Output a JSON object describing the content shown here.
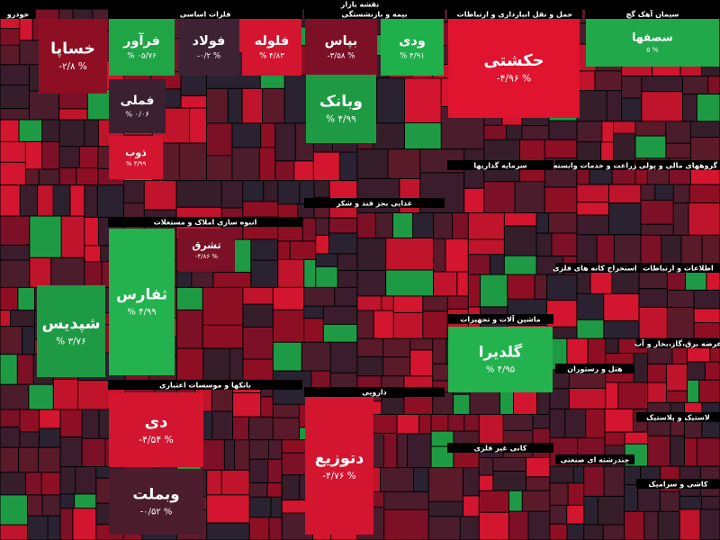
{
  "title": "نقشه بازار",
  "sectors": [
    "خودرو",
    "فلزات اساسی",
    "بیمه و بازنشستگی",
    "حمل و نقل انبارداری و ارتباطات",
    "سیمان آهک گچ",
    "انبوه سازی املاک و مستغلات",
    "غذایی بجز قند و شکر",
    "سرمایه گذاریها",
    "زراعت و خدمات وابسته",
    "گروههای مالی و پولی",
    "استخراج کانه های فلزی",
    "اطلاعات و ارتباطات",
    "ماشین آلات و تجهیزات",
    "عرضه برق،گاز،بخار و آب",
    "هتل و رستوران",
    "بانکها و موسسات اعتباری",
    "دارویی",
    "لاستیک و پلاستیک",
    "کانی غیر فلزی",
    "چندرشته ای صنعتی",
    "کاشی و سرامیک"
  ],
  "tiles": [
    {
      "name": "خساپا",
      "change": "-۲/۸ %",
      "color": "#8e0f24"
    },
    {
      "name": "فرآور",
      "change": "% ۰۵/۷۶",
      "color": "#1fa546"
    },
    {
      "name": "فولاد",
      "change": "-۰/۲ %",
      "color": "#3d2233"
    },
    {
      "name": "فلوله",
      "change": "% ۴/۸۳",
      "color": "#d4152f"
    },
    {
      "name": "بپاس",
      "change": "-۳/۵۸ %",
      "color": "#7c1027"
    },
    {
      "name": "ودی",
      "change": "% ۴/۹۱",
      "color": "#20b04b"
    },
    {
      "name": "حکشتی",
      "change": "-۴/۹۶ %",
      "color": "#e0142f"
    },
    {
      "name": "سصفها",
      "change": "۵ %",
      "color": "#21a84a"
    },
    {
      "name": "فملی",
      "change": "% ۰/۰۶",
      "color": "#3a2030"
    },
    {
      "name": "ذوب",
      "change": "% ۴/۹۹",
      "color": "#d4152f"
    },
    {
      "name": "شپدیس",
      "change": "% ۳/۷۶",
      "color": "#1f9a44"
    },
    {
      "name": "ثفارس",
      "change": "% ۴/۹۹",
      "color": "#23b24d"
    },
    {
      "name": "تشرق",
      "change": "-۴/۸۶ %",
      "color": "#7c1027"
    },
    {
      "name": "دی",
      "change": "-۴/۵۴ %",
      "color": "#d4152f"
    },
    {
      "name": "وبملت",
      "change": "-۰/۵۲ %",
      "color": "#4a1c2c"
    },
    {
      "name": "دتوزیع",
      "change": "-۴/۷۶ %",
      "color": "#d4152f"
    },
    {
      "name": "گلدیرا",
      "change": "% ۴/۹۵",
      "color": "#23b24d"
    },
    {
      "name": "وبانک",
      "change": "% ۴/۹۹",
      "color": "#1f9a44"
    }
  ]
}
